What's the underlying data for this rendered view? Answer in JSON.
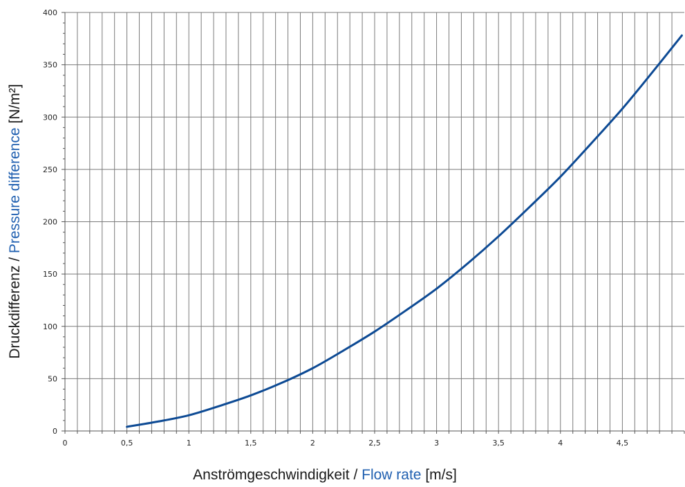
{
  "chart_data": {
    "type": "line",
    "title": "",
    "xlabel": {
      "part1": "Anströmgeschwindigkeit / ",
      "part2": "Flow rate",
      "part3": " [m/s]"
    },
    "ylabel": {
      "part1": "Druckdifferenz / ",
      "part2": "Pressure difference",
      "part3": " [N/m²]"
    },
    "xlim": [
      0,
      5
    ],
    "ylim": [
      0,
      400
    ],
    "x_ticks": [
      0,
      0.5,
      1,
      1.5,
      2,
      2.5,
      3,
      3.5,
      4,
      4.5
    ],
    "x_tick_labels": [
      "0",
      "0,5",
      "1",
      "1,5",
      "2",
      "2,5",
      "3",
      "3,5",
      "4",
      "4,5"
    ],
    "y_ticks": [
      0,
      50,
      100,
      150,
      200,
      250,
      300,
      350,
      400
    ],
    "y_tick_labels": [
      "0",
      "50",
      "100",
      "150",
      "200",
      "250",
      "300",
      "350",
      "400"
    ],
    "grid": true,
    "x_minor_step": 0.1,
    "y_minor_step": 10,
    "series": [
      {
        "color": "#0d4a94",
        "x": [
          0.5,
          0.75,
          1.0,
          1.25,
          1.5,
          1.75,
          2.0,
          2.25,
          2.5,
          2.75,
          3.0,
          3.25,
          3.5,
          3.75,
          4.0,
          4.25,
          4.5,
          4.75,
          4.98
        ],
        "y": [
          4,
          9,
          15,
          24,
          34,
          46,
          60,
          77,
          95,
          115,
          136,
          160,
          186,
          214,
          243,
          275,
          308,
          344,
          378
        ]
      }
    ]
  }
}
